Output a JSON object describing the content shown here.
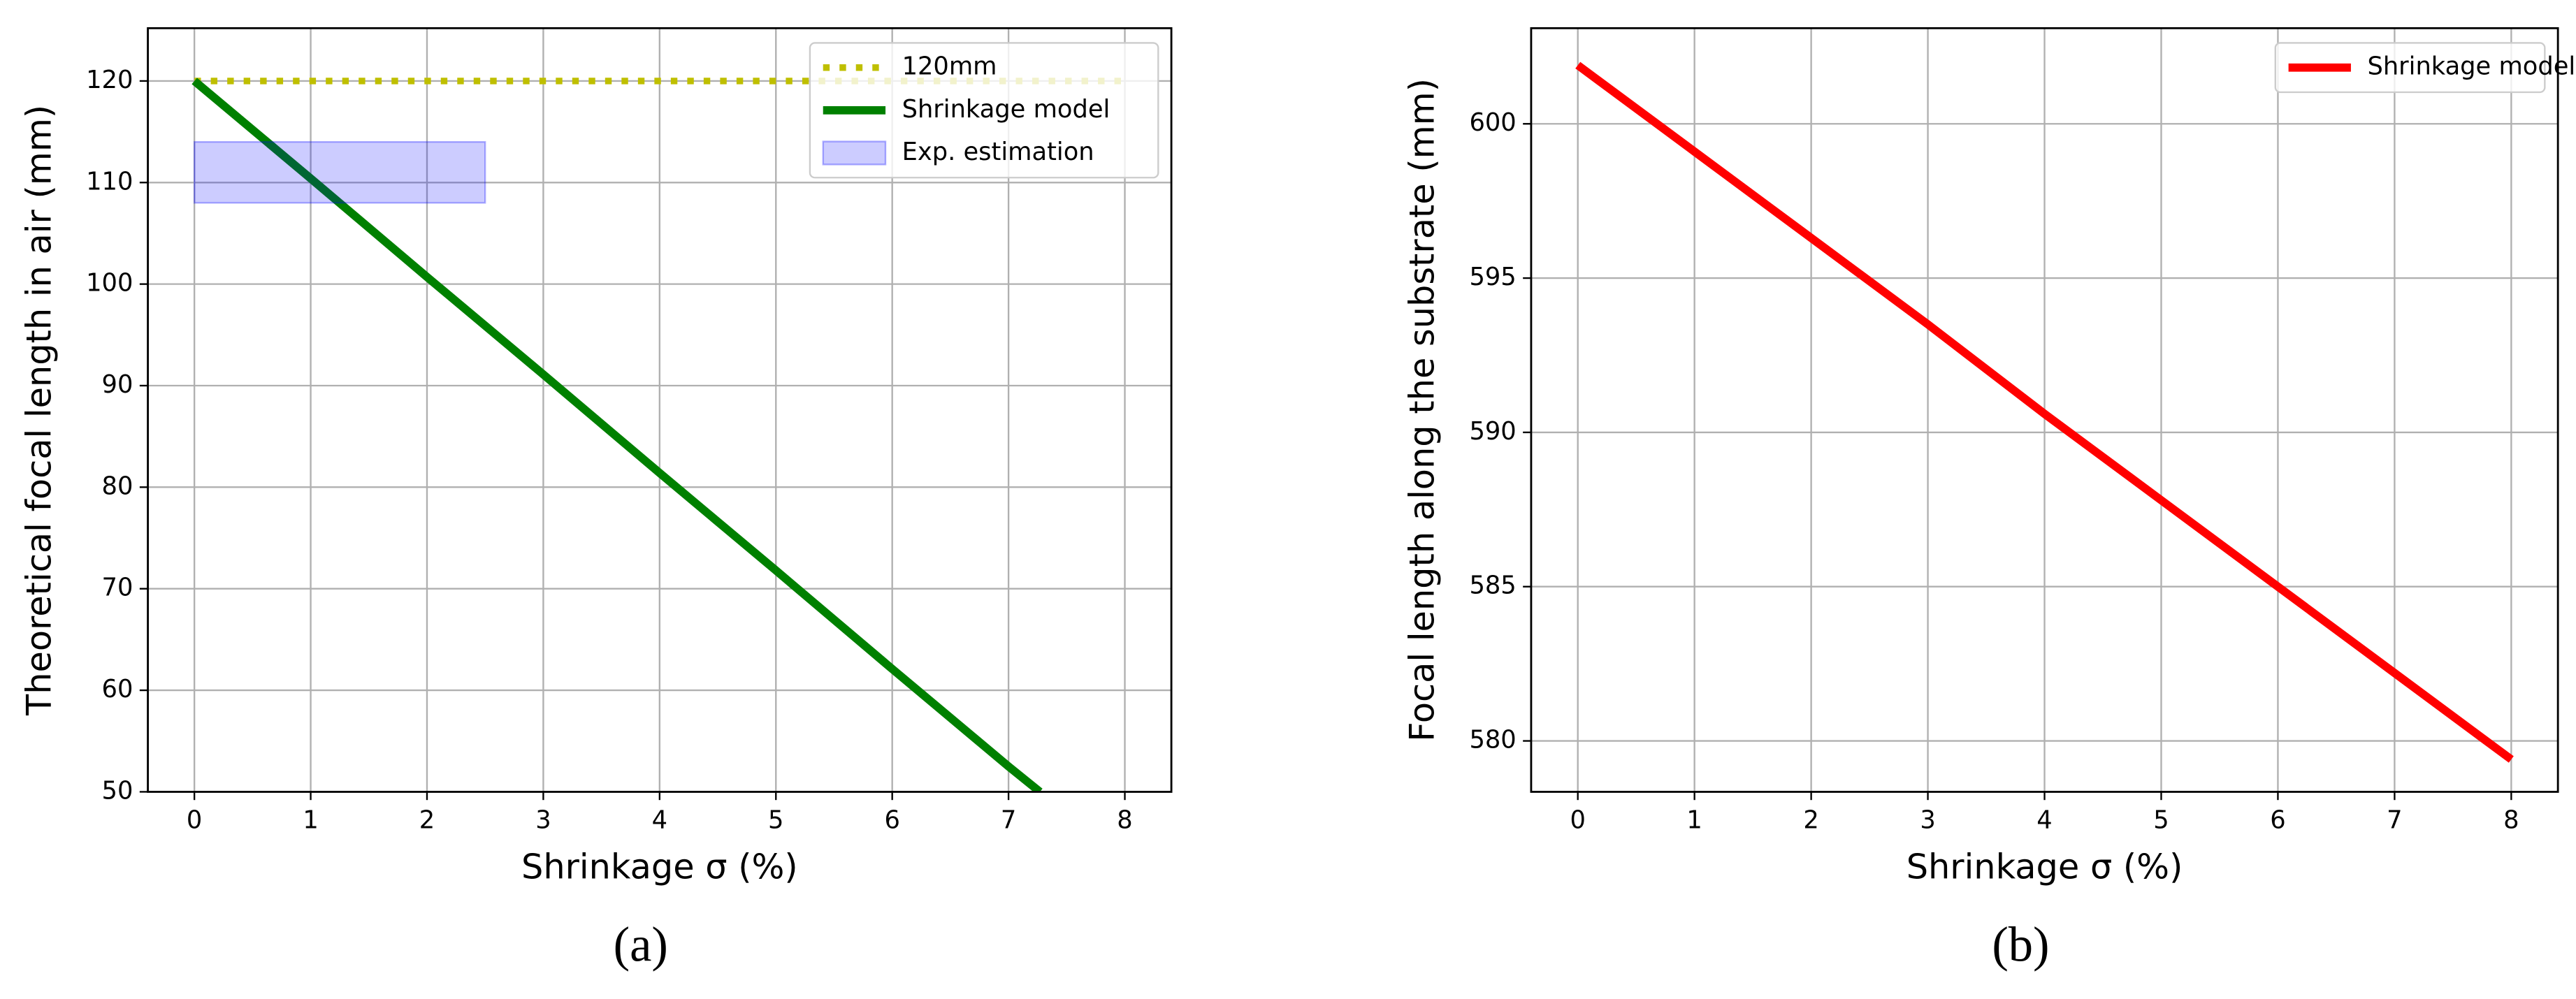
{
  "chart_data": [
    {
      "type": "line",
      "caption": "(a)",
      "xlabel": "Shrinkage σ (%)",
      "ylabel": "Theoretical focal length in air (mm)",
      "xlim": [
        -0.4,
        8.4
      ],
      "ylim": [
        50,
        125.2
      ],
      "xticks": [
        0,
        1,
        2,
        3,
        4,
        5,
        6,
        7,
        8
      ],
      "yticks": [
        50,
        60,
        70,
        80,
        90,
        100,
        110,
        120
      ],
      "grid": true,
      "legend": "upper right",
      "series": [
        {
          "name": "120mm",
          "color": "#bfbf00",
          "style": "dotted",
          "x": [
            0,
            8
          ],
          "values": [
            120,
            120
          ]
        },
        {
          "name": "Shrinkage model",
          "color": "#008000",
          "style": "solid",
          "x": [
            0,
            1,
            2,
            3,
            4,
            5,
            6,
            7,
            7.27
          ],
          "values": [
            120,
            110.4,
            100.7,
            91.1,
            81.4,
            71.8,
            62.1,
            52.5,
            50
          ]
        },
        {
          "name": "Exp. estimation",
          "color": "#0000ff",
          "style": "band",
          "x": [
            0,
            2.5
          ],
          "values": [
            108,
            114
          ]
        }
      ]
    },
    {
      "type": "line",
      "caption": "(b)",
      "xlabel": "Shrinkage σ (%)",
      "ylabel": "Focal length along the substrate (mm)",
      "xlim": [
        -0.4,
        8.4
      ],
      "ylim": [
        578.35,
        603.1
      ],
      "xticks": [
        0,
        1,
        2,
        3,
        4,
        5,
        6,
        7,
        8
      ],
      "yticks": [
        580,
        585,
        590,
        595,
        600
      ],
      "grid": true,
      "legend": "upper right",
      "series": [
        {
          "name": "Shrinkage model",
          "color": "#ff0000",
          "style": "solid",
          "x": [
            0,
            1,
            2,
            3,
            4,
            5,
            6,
            7,
            8
          ],
          "values": [
            601.9,
            599.1,
            596.3,
            593.5,
            590.6,
            587.8,
            585.0,
            582.2,
            579.4
          ]
        }
      ]
    }
  ]
}
